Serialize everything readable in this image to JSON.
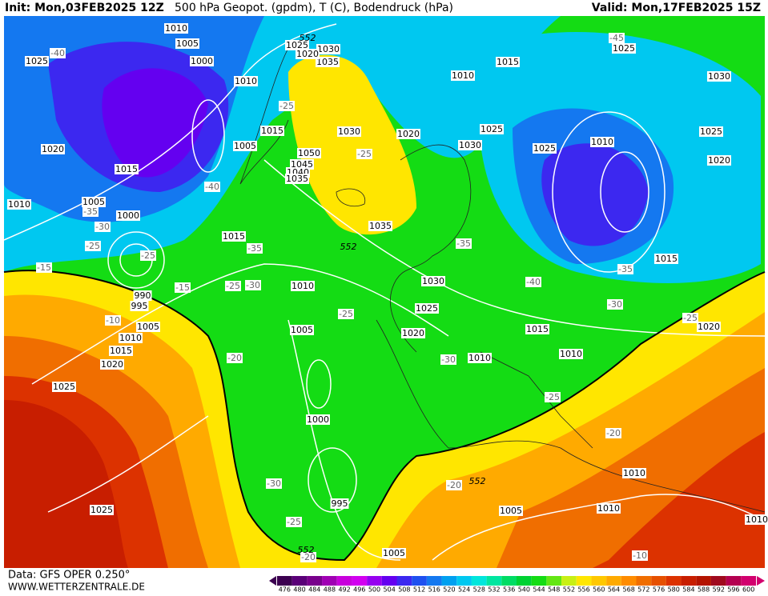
{
  "header": {
    "init": "Init: Mon,03FEB2025 12Z",
    "title": "500 hPa Geopot. (gpdm), T (C), Bodendruck (hPa)",
    "valid": "Valid: Mon,17FEB2025 15Z"
  },
  "footer": {
    "data": "Data: GFS OPER 0.250°",
    "site": "WWW.WETTERZENTRALE.DE"
  },
  "legend": {
    "values": [
      476,
      480,
      484,
      488,
      492,
      496,
      500,
      504,
      508,
      512,
      516,
      520,
      524,
      528,
      532,
      536,
      540,
      544,
      548,
      552,
      556,
      560,
      564,
      568,
      572,
      576,
      580,
      584,
      588,
      592,
      596,
      600
    ],
    "colors": [
      "#3c0050",
      "#5a0078",
      "#78008c",
      "#a000b4",
      "#c800dc",
      "#d200f0",
      "#9600f0",
      "#6400f0",
      "#3c28f0",
      "#1e50f0",
      "#1478f0",
      "#00a0f0",
      "#00c8f0",
      "#00e6dc",
      "#00e6a0",
      "#00dc64",
      "#00d232",
      "#14dc14",
      "#64e614",
      "#c8f014",
      "#ffe600",
      "#ffc800",
      "#ffaa00",
      "#ff8c00",
      "#f06e00",
      "#e65000",
      "#dc3200",
      "#c81e00",
      "#b41400",
      "#a00a1e",
      "#b40050",
      "#d2006e"
    ]
  },
  "pressure_labels": [
    "1010",
    "1005",
    "1025",
    "1000",
    "1010",
    "1020",
    "1015",
    "1010",
    "1005",
    "1000",
    "1015",
    "1015",
    "1005",
    "1050",
    "1045",
    "1040",
    "1035",
    "1030",
    "1035",
    "1030",
    "1020",
    "1025",
    "1035",
    "1020",
    "1025",
    "1030",
    "1025",
    "1010",
    "1015",
    "1025",
    "1030",
    "1025",
    "1020",
    "1010",
    "1015",
    "1030",
    "1025",
    "1020",
    "1015",
    "1010",
    "1010",
    "1020",
    "990",
    "995",
    "1005",
    "1010",
    "1015",
    "1020",
    "1025",
    "1010",
    "1005",
    "1000",
    "995",
    "1025",
    "1005",
    "1010",
    "1010",
    "1005",
    "1010"
  ],
  "temperature_labels": [
    "-40",
    "-45",
    "-25",
    "-25",
    "-40",
    "-35",
    "-30",
    "-25",
    "-25",
    "-15",
    "-15",
    "-25",
    "-30",
    "-35",
    "-35",
    "-40",
    "-35",
    "-30",
    "-25",
    "-20",
    "-30",
    "-25",
    "-20",
    "-25",
    "-10",
    "-20",
    "-30",
    "-25",
    "-20",
    "-10"
  ],
  "geopotential_labels": [
    "552",
    "552",
    "552",
    "552"
  ]
}
